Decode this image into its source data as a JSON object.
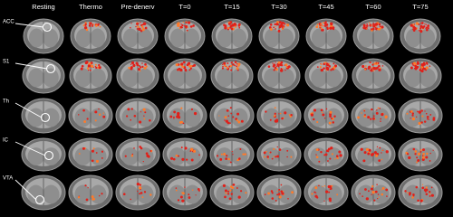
{
  "columns": [
    "Resting",
    "Thermo",
    "Pre-denerv",
    "T=0",
    "T=15",
    "T=30",
    "T=45",
    "T=60",
    "T=75"
  ],
  "rows": [
    "ACC",
    "S1",
    "Th",
    "IC",
    "VTA"
  ]
}
